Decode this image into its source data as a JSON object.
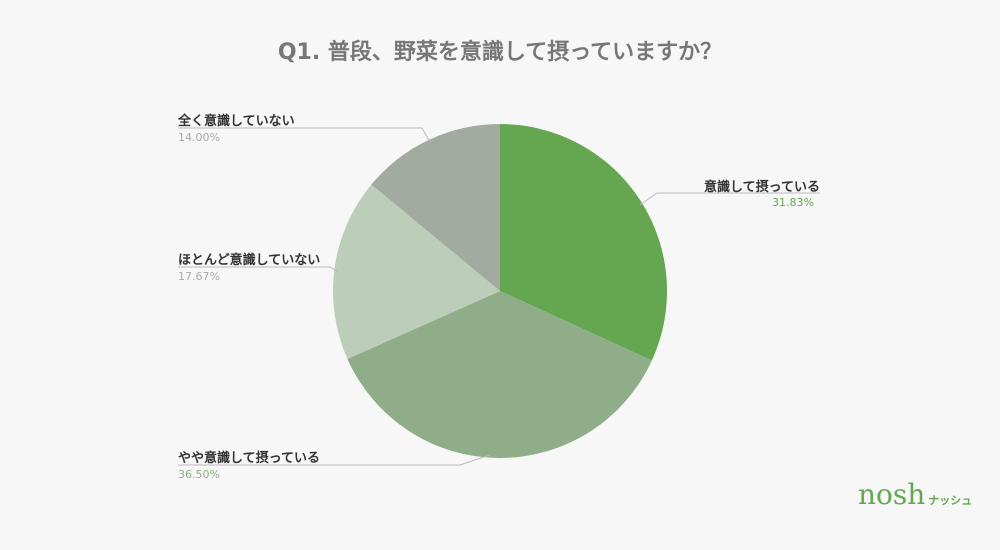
{
  "chart_data": {
    "type": "pie",
    "title": "Q1. 普段、野菜を意識して摂っていますか？",
    "slices": [
      {
        "label": "意識して摂っている",
        "value": 31.83,
        "percent_label": "31.83%",
        "color": "#65a650"
      },
      {
        "label": "やや意識して摂っている",
        "value": 36.5,
        "percent_label": "36.50%",
        "color": "#8fad88"
      },
      {
        "label": "ほとんど意識していない",
        "value": 17.67,
        "percent_label": "17.67%",
        "color": "#bccdb9"
      },
      {
        "label": "全く意識していない",
        "value": 14.0,
        "percent_label": "14.00%",
        "color": "#a3aa9f"
      }
    ],
    "start_angle": "top, clockwise",
    "legend": "none (callout labels)"
  },
  "logo": {
    "text": "nosh",
    "sub": "ナッシュ"
  }
}
